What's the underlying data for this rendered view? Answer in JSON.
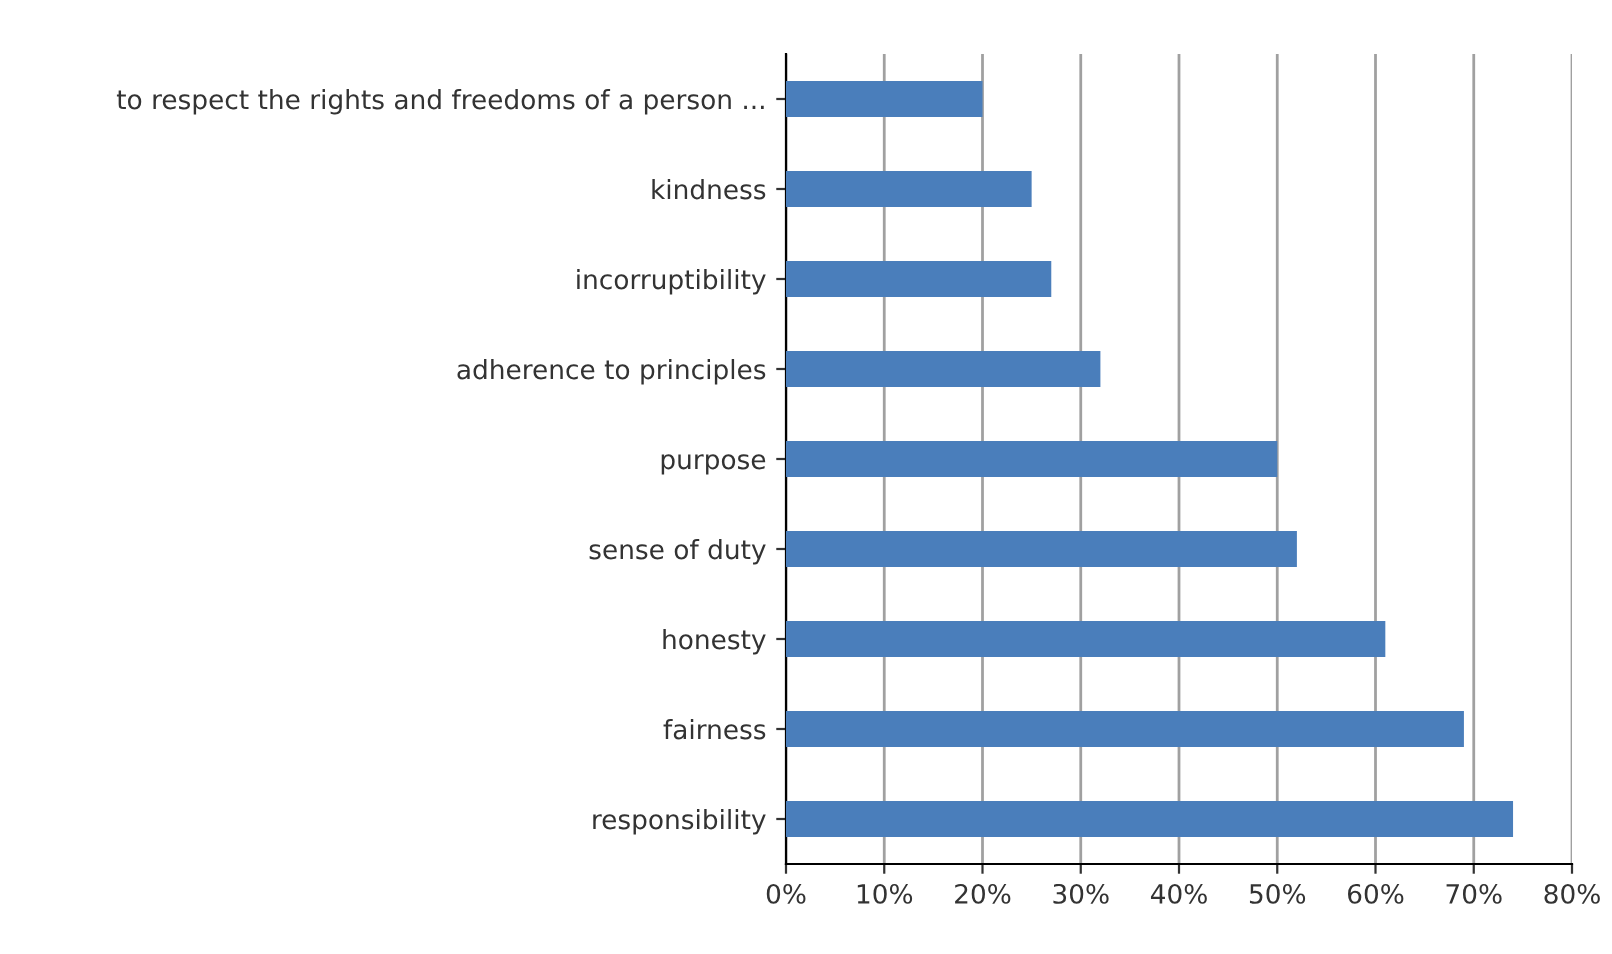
{
  "chart_data": {
    "type": "bar",
    "orientation": "horizontal",
    "categories": [
      "to respect the rights and freedoms of a person ...",
      "kindness",
      "incorruptibility",
      "adherence to principles",
      "purpose",
      "sense of duty",
      "honesty",
      "fairness",
      "responsibility"
    ],
    "values": [
      20,
      25,
      27,
      32,
      50,
      52,
      61,
      69,
      74
    ],
    "color": "#4a7ebb",
    "xlim": [
      0,
      80
    ],
    "xticks": [
      {
        "value": 0,
        "label": "0%"
      },
      {
        "value": 10,
        "label": "10%"
      },
      {
        "value": 20,
        "label": "20%"
      },
      {
        "value": 30,
        "label": "30%"
      },
      {
        "value": 40,
        "label": "40%"
      },
      {
        "value": 50,
        "label": "50%"
      },
      {
        "value": 60,
        "label": "60%"
      },
      {
        "value": 70,
        "label": "70%"
      },
      {
        "value": 80,
        "label": "80%"
      }
    ],
    "grid": "x",
    "legend": false
  }
}
